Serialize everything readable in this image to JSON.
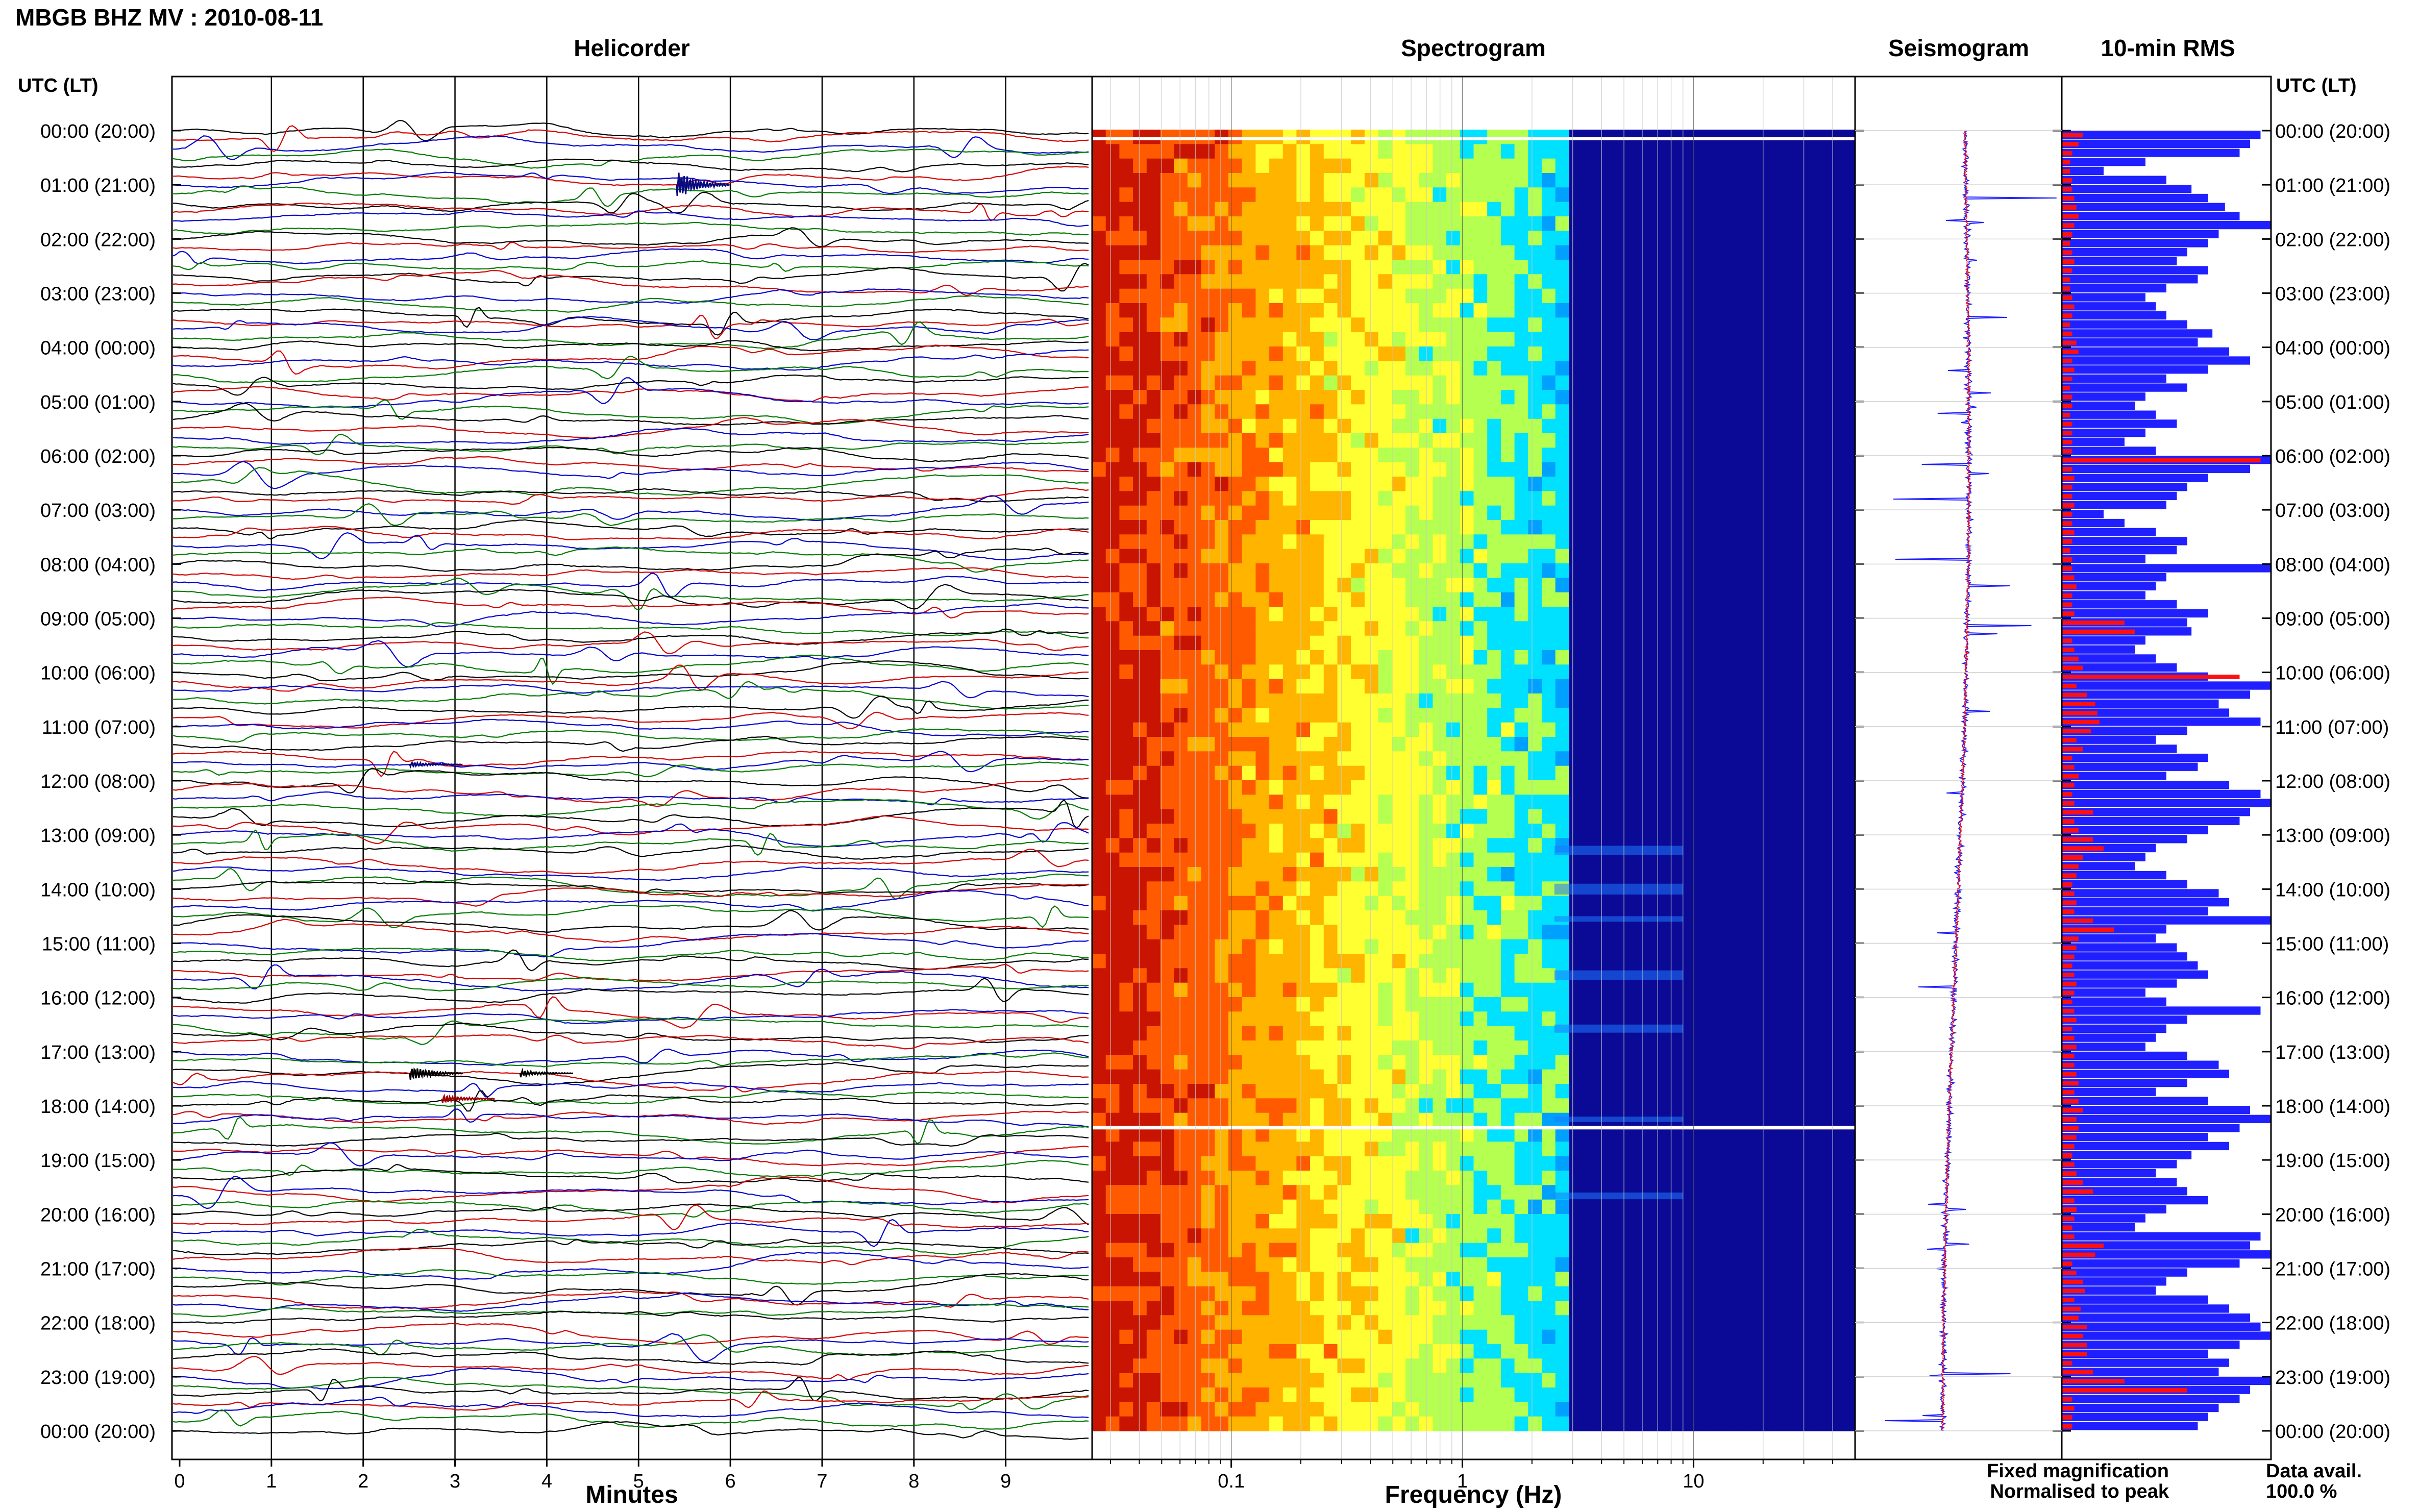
{
  "header": {
    "station_title": "MBGB BHZ MV : 2010-08-11"
  },
  "panels": {
    "helicorder_title": "Helicorder",
    "spectrogram_title": "Spectrogram",
    "seismogram_title": "Seismogram",
    "rms_title": "10-min RMS"
  },
  "axes": {
    "time_axis_label_left": "UTC (LT)",
    "time_axis_label_right": "UTC (LT)",
    "minutes_label": "Minutes",
    "frequency_label": "Frequency (Hz)"
  },
  "legend": {
    "fixed": "Fixed magnification",
    "normalised": "Normalised to peak",
    "fixed_color": "#1f1fff",
    "normalised_color": "#ff1010"
  },
  "data_availability": {
    "label": "Data avail.",
    "value": "100.0 %"
  },
  "chart_data": [
    {
      "type": "line",
      "name": "helicorder",
      "title": "Helicorder",
      "xlabel": "Minutes",
      "ylabel": "UTC (LT)",
      "x_ticks": [
        "0",
        "1",
        "2",
        "3",
        "4",
        "5",
        "6",
        "7",
        "8",
        "9"
      ],
      "xlim": [
        0,
        10
      ],
      "time_tick_labels": [
        "00:00 (20:00)",
        "01:00 (21:00)",
        "02:00 (22:00)",
        "03:00 (23:00)",
        "04:00 (00:00)",
        "05:00 (01:00)",
        "06:00 (02:00)",
        "07:00 (03:00)",
        "08:00 (04:00)",
        "09:00 (05:00)",
        "10:00 (06:00)",
        "11:00 (07:00)",
        "12:00 (08:00)",
        "13:00 (09:00)",
        "14:00 (10:00)",
        "15:00 (11:00)",
        "16:00 (12:00)",
        "17:00 (13:00)",
        "18:00 (14:00)",
        "19:00 (15:00)",
        "20:00 (16:00)",
        "21:00 (17:00)",
        "22:00 (18:00)",
        "23:00 (19:00)",
        "00:00 (20:00)"
      ],
      "trace_colors": [
        "#000000",
        "#d40000",
        "#0000d0",
        "#007a00"
      ],
      "traces_per_hour": 6
    },
    {
      "type": "heatmap",
      "name": "spectrogram",
      "title": "Spectrogram",
      "xlabel": "Frequency (Hz)",
      "x_scale": "log",
      "xlim": [
        0.025,
        50
      ],
      "x_tick_labels": [
        "0.1",
        "1",
        "10"
      ],
      "colormap": [
        "#c81400",
        "#ff5a00",
        "#ffb400",
        "#ffff32",
        "#b4ff50",
        "#00e1ff",
        "#00a0ff",
        "#1e64ff",
        "#0a28d2",
        "#0a0a96"
      ]
    },
    {
      "type": "line",
      "name": "seismogram",
      "title": "Seismogram",
      "series": [
        {
          "name": "Fixed magnification",
          "color": "#1f1fff"
        },
        {
          "name": "Normalised to peak",
          "color": "#ff1010"
        }
      ]
    },
    {
      "type": "bar",
      "name": "rms",
      "title": "10-min RMS",
      "orientation": "horizontal",
      "n_bars": 144,
      "series": [
        {
          "name": "Fixed magnification",
          "color": "#1f1fff",
          "values": [
            0.95,
            0.9,
            0.85,
            0.4,
            0.2,
            0.5,
            0.62,
            0.7,
            0.78,
            0.85,
            1.0,
            0.75,
            0.7,
            0.6,
            0.55,
            0.7,
            0.65,
            0.5,
            0.4,
            0.45,
            0.5,
            0.6,
            0.72,
            0.65,
            0.8,
            0.9,
            0.7,
            0.5,
            0.6,
            0.4,
            0.35,
            0.45,
            0.55,
            0.4,
            0.3,
            0.45,
            1.0,
            0.9,
            0.7,
            0.6,
            0.55,
            0.5,
            0.2,
            0.3,
            0.45,
            0.6,
            0.55,
            0.4,
            1.0,
            0.5,
            0.45,
            0.4,
            0.55,
            0.7,
            0.6,
            0.62,
            0.4,
            0.35,
            0.45,
            0.55,
            0.7,
            1.0,
            0.9,
            0.75,
            0.8,
            0.95,
            0.6,
            0.45,
            0.55,
            0.7,
            0.65,
            0.5,
            0.8,
            0.95,
            1.0,
            0.9,
            0.85,
            0.7,
            0.6,
            0.45,
            0.4,
            0.35,
            0.5,
            0.6,
            0.75,
            0.8,
            0.7,
            1.0,
            0.5,
            0.45,
            0.55,
            0.6,
            0.65,
            0.7,
            0.55,
            0.4,
            0.5,
            0.95,
            0.6,
            0.5,
            0.45,
            0.4,
            0.6,
            0.75,
            0.8,
            0.6,
            0.45,
            0.7,
            0.9,
            1.0,
            0.85,
            0.7,
            0.8,
            0.62,
            0.55,
            0.45,
            0.55,
            0.6,
            0.7,
            0.5,
            0.4,
            0.35,
            0.95,
            0.9,
            1.0,
            0.85,
            0.6,
            0.5,
            0.45,
            0.7,
            0.8,
            0.9,
            0.95,
            1.0,
            0.85,
            0.7,
            0.8,
            0.75,
            1.0,
            0.9,
            0.85,
            0.75,
            0.7,
            0.65
          ]
        },
        {
          "name": "Normalised to peak",
          "color": "#ff1010",
          "values": [
            0.1,
            0.08,
            0.05,
            0.04,
            0.04,
            0.05,
            0.05,
            0.06,
            0.07,
            0.08,
            0.06,
            0.05,
            0.04,
            0.05,
            0.06,
            0.05,
            0.04,
            0.04,
            0.05,
            0.06,
            0.05,
            0.04,
            0.05,
            0.07,
            0.08,
            0.05,
            0.06,
            0.05,
            0.04,
            0.05,
            0.05,
            0.04,
            0.05,
            0.05,
            0.05,
            0.05,
            0.95,
            0.05,
            0.06,
            0.05,
            0.05,
            0.06,
            0.05,
            0.05,
            0.06,
            0.05,
            0.04,
            0.05,
            0.05,
            0.06,
            0.07,
            0.05,
            0.05,
            0.06,
            0.3,
            0.35,
            0.05,
            0.06,
            0.08,
            0.1,
            0.85,
            0.07,
            0.12,
            0.16,
            0.17,
            0.18,
            0.14,
            0.07,
            0.1,
            0.05,
            0.06,
            0.08,
            0.06,
            0.05,
            0.06,
            0.15,
            0.06,
            0.08,
            0.15,
            0.2,
            0.1,
            0.08,
            0.07,
            0.05,
            0.06,
            0.07,
            0.06,
            0.15,
            0.25,
            0.08,
            0.07,
            0.06,
            0.05,
            0.06,
            0.07,
            0.06,
            0.05,
            0.06,
            0.07,
            0.05,
            0.06,
            0.07,
            0.06,
            0.06,
            0.07,
            0.08,
            0.06,
            0.08,
            0.1,
            0.07,
            0.08,
            0.07,
            0.06,
            0.05,
            0.06,
            0.07,
            0.1,
            0.15,
            0.06,
            0.07,
            0.06,
            0.05,
            0.06,
            0.2,
            0.16,
            0.05,
            0.07,
            0.1,
            0.11,
            0.06,
            0.09,
            0.08,
            0.12,
            0.1,
            0.12,
            0.12,
            0.05,
            0.15,
            0.3,
            0.6,
            0.05,
            0.06,
            0.05,
            0.05
          ]
        }
      ]
    }
  ]
}
